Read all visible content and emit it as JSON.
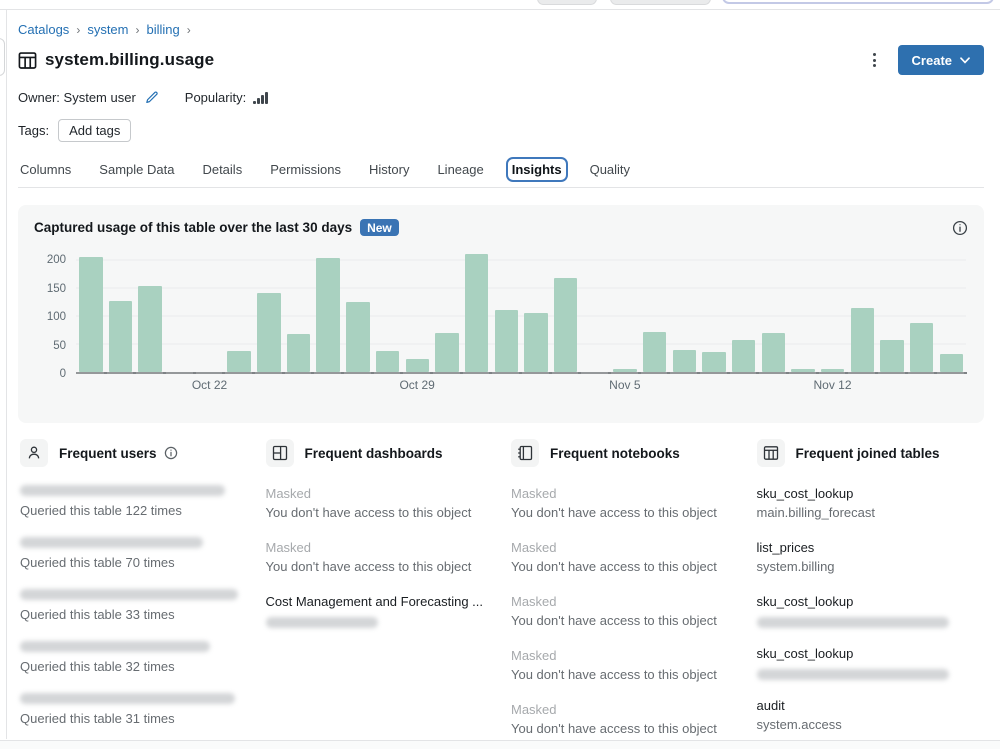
{
  "page": {
    "breadcrumb": {
      "items": [
        "Catalogs",
        "system",
        "billing"
      ],
      "separator": "›"
    },
    "title": "system.billing.usage",
    "actions": {
      "create_label": "Create"
    },
    "meta": {
      "owner_label": "Owner:",
      "owner_value": "System user",
      "popularity_label": "Popularity:"
    },
    "tags": {
      "label": "Tags:",
      "add_button": "Add tags"
    },
    "tabs": [
      {
        "label": "Columns",
        "active": false
      },
      {
        "label": "Sample Data",
        "active": false
      },
      {
        "label": "Details",
        "active": false
      },
      {
        "label": "Permissions",
        "active": false
      },
      {
        "label": "History",
        "active": false
      },
      {
        "label": "Lineage",
        "active": false
      },
      {
        "label": "Insights",
        "active": true
      },
      {
        "label": "Quality",
        "active": false
      }
    ]
  },
  "insights": {
    "panel_title": "Captured usage of this table over the last 30 days",
    "badge": "New",
    "chart_data": {
      "type": "bar",
      "title": "Captured usage of this table over the last 30 days",
      "values": [
        205,
        126,
        153,
        0,
        0,
        37,
        141,
        68,
        203,
        125,
        37,
        23,
        69,
        211,
        110,
        106,
        167,
        0,
        5,
        72,
        40,
        36,
        58,
        69,
        6,
        5,
        115,
        57,
        87,
        32
      ],
      "tick_labels": [
        {
          "index": 4,
          "label": "Oct 22"
        },
        {
          "index": 11,
          "label": "Oct 29"
        },
        {
          "index": 18,
          "label": "Nov 5"
        },
        {
          "index": 25,
          "label": "Nov 12"
        }
      ],
      "yticks": [
        0,
        50,
        100,
        150,
        200
      ],
      "ylim": [
        0,
        225
      ],
      "grid": true,
      "bar_color": "#a9d1c0"
    },
    "columns": [
      {
        "title": "Frequent users",
        "items": [
          {
            "caption": "Queried this table 122 times"
          },
          {
            "caption": "Queried this table 70 times"
          },
          {
            "caption": "Queried this table 33 times"
          },
          {
            "caption": "Queried this table 32 times"
          },
          {
            "caption": "Queried this table 31 times"
          }
        ]
      },
      {
        "title": "Frequent dashboards",
        "items": [
          {
            "name": "Masked",
            "caption": "You don't have access to this object"
          },
          {
            "name": "Masked",
            "caption": "You don't have access to this object"
          },
          {
            "name": "Cost Management and Forecasting ..."
          }
        ]
      },
      {
        "title": "Frequent notebooks",
        "items": [
          {
            "name": "Masked",
            "caption": "You don't have access to this object"
          },
          {
            "name": "Masked",
            "caption": "You don't have access to this object"
          },
          {
            "name": "Masked",
            "caption": "You don't have access to this object"
          },
          {
            "name": "Masked",
            "caption": "You don't have access to this object"
          },
          {
            "name": "Masked",
            "caption": "You don't have access to this object"
          }
        ]
      },
      {
        "title": "Frequent joined tables",
        "items": [
          {
            "name": "sku_cost_lookup",
            "caption": "main.billing_forecast"
          },
          {
            "name": "list_prices",
            "caption": "system.billing"
          },
          {
            "name": "sku_cost_lookup"
          },
          {
            "name": "sku_cost_lookup"
          },
          {
            "name": "audit",
            "caption": "system.access"
          }
        ]
      }
    ]
  }
}
